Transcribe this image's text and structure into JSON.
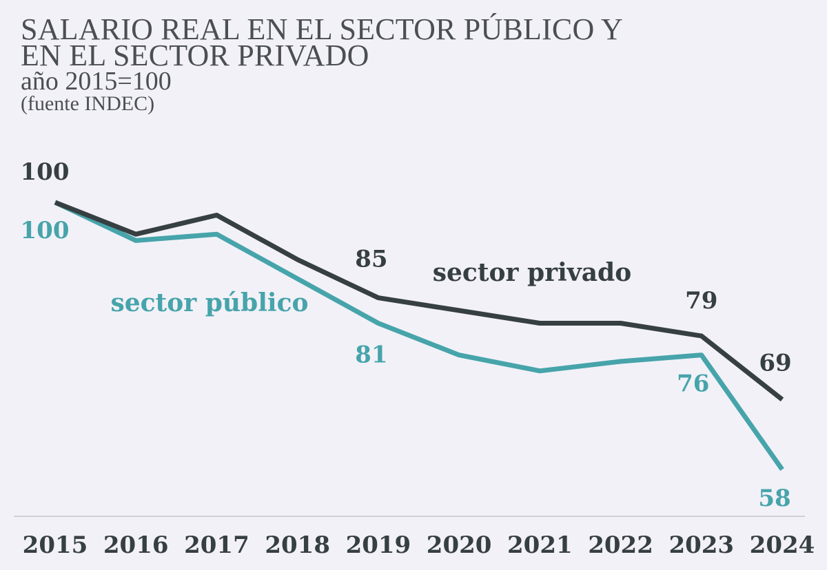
{
  "header": {
    "title_line1": "SALARIO REAL EN EL SECTOR PÚBLICO Y",
    "title_line2": "EN EL SECTOR PRIVADO",
    "subtitle": "año 2015=100",
    "source": "(fuente INDEC)"
  },
  "colors": {
    "privado": "#363f42",
    "publico": "#46a4aa",
    "axis_text": "#363f42",
    "baseline": "#cfcfd4"
  },
  "chart_data": {
    "type": "line",
    "title": "SALARIO REAL EN EL SECTOR PÚBLICO Y EN EL SECTOR PRIVADO",
    "subtitle": "año 2015=100",
    "x": [
      2015,
      2016,
      2017,
      2018,
      2019,
      2020,
      2021,
      2022,
      2023,
      2024
    ],
    "ylim": [
      50,
      105
    ],
    "grid": false,
    "series": [
      {
        "name": "sector privado",
        "key": "privado",
        "values": [
          100,
          95,
          98,
          91,
          85,
          83,
          81,
          81,
          79,
          69
        ],
        "labels": [
          {
            "year": 2015,
            "text": "100"
          },
          {
            "year": 2019,
            "text": "85"
          },
          {
            "year": 2023,
            "text": "79"
          },
          {
            "year": 2024,
            "text": "69"
          }
        ]
      },
      {
        "name": "sector público",
        "key": "publico",
        "values": [
          100,
          94,
          95,
          88,
          81,
          76,
          73.5,
          75,
          76,
          58
        ],
        "labels": [
          {
            "year": 2015,
            "text": "100"
          },
          {
            "year": 2019,
            "text": "81"
          },
          {
            "year": 2023,
            "text": "76"
          },
          {
            "year": 2024,
            "text": "58"
          }
        ]
      }
    ]
  }
}
